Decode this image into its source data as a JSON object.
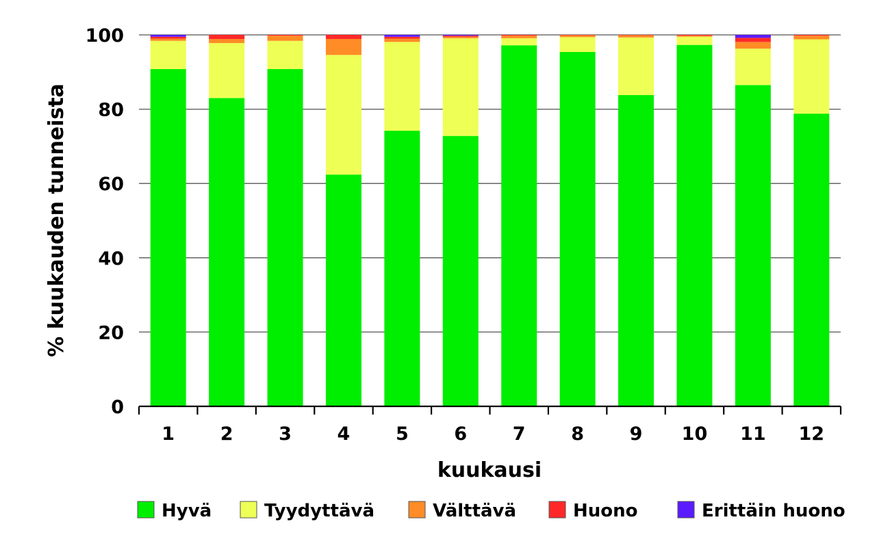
{
  "chart_data": {
    "type": "bar",
    "stacked": true,
    "xlabel": "kuukausi",
    "ylabel": "% kuukauden tunneista",
    "ylim": [
      0,
      100
    ],
    "yticks": [
      0,
      20,
      40,
      60,
      80,
      100
    ],
    "grid": "horizontal",
    "legend_position": "bottom",
    "categories": [
      "1",
      "2",
      "3",
      "4",
      "5",
      "6",
      "7",
      "8",
      "9",
      "10",
      "11",
      "12"
    ],
    "series": [
      {
        "name": "Hyvä",
        "color": "#00ee00",
        "values": [
          90.8,
          83.0,
          90.8,
          62.4,
          74.2,
          72.8,
          97.2,
          95.4,
          83.8,
          97.3,
          86.5,
          78.8
        ]
      },
      {
        "name": "Tyydyttävä",
        "color": "#eeff55",
        "values": [
          7.6,
          14.8,
          7.6,
          32.2,
          23.9,
          26.3,
          1.9,
          4.0,
          15.5,
          2.2,
          9.8,
          20.0
        ]
      },
      {
        "name": "Välttävä",
        "color": "#ff8c26",
        "values": [
          0.6,
          1.1,
          1.4,
          4.3,
          0.9,
          0.4,
          0.7,
          0.5,
          0.6,
          0.3,
          1.8,
          1.0
        ]
      },
      {
        "name": "Huono",
        "color": "#ff2828",
        "values": [
          0.5,
          1.1,
          0.2,
          1.1,
          0.5,
          0.3,
          0.2,
          0.1,
          0.1,
          0.2,
          1.1,
          0.2
        ]
      },
      {
        "name": "Erittäin huono",
        "color": "#5a1cff",
        "values": [
          0.5,
          0.0,
          0.0,
          0.0,
          0.5,
          0.2,
          0.0,
          0.0,
          0.0,
          0.0,
          0.8,
          0.0
        ]
      }
    ]
  }
}
